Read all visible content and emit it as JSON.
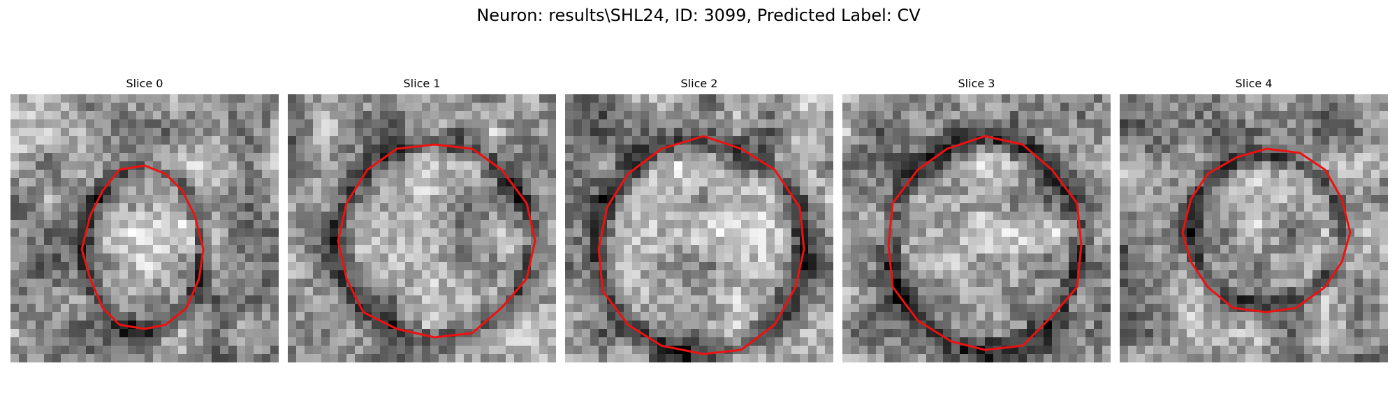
{
  "figure": {
    "title": "Neuron: results\\SHL24, ID: 3099, Predicted Label: CV"
  },
  "slices": [
    {
      "title": "Slice 0",
      "contour_color": "#ee1111",
      "seed": 11
    },
    {
      "title": "Slice 1",
      "contour_color": "#ee1111",
      "seed": 23
    },
    {
      "title": "Slice 2",
      "contour_color": "#ee1111",
      "seed": 37
    },
    {
      "title": "Slice 3",
      "contour_color": "#ee1111",
      "seed": 41
    },
    {
      "title": "Slice 4",
      "contour_color": "#ee1111",
      "seed": 53
    }
  ]
}
